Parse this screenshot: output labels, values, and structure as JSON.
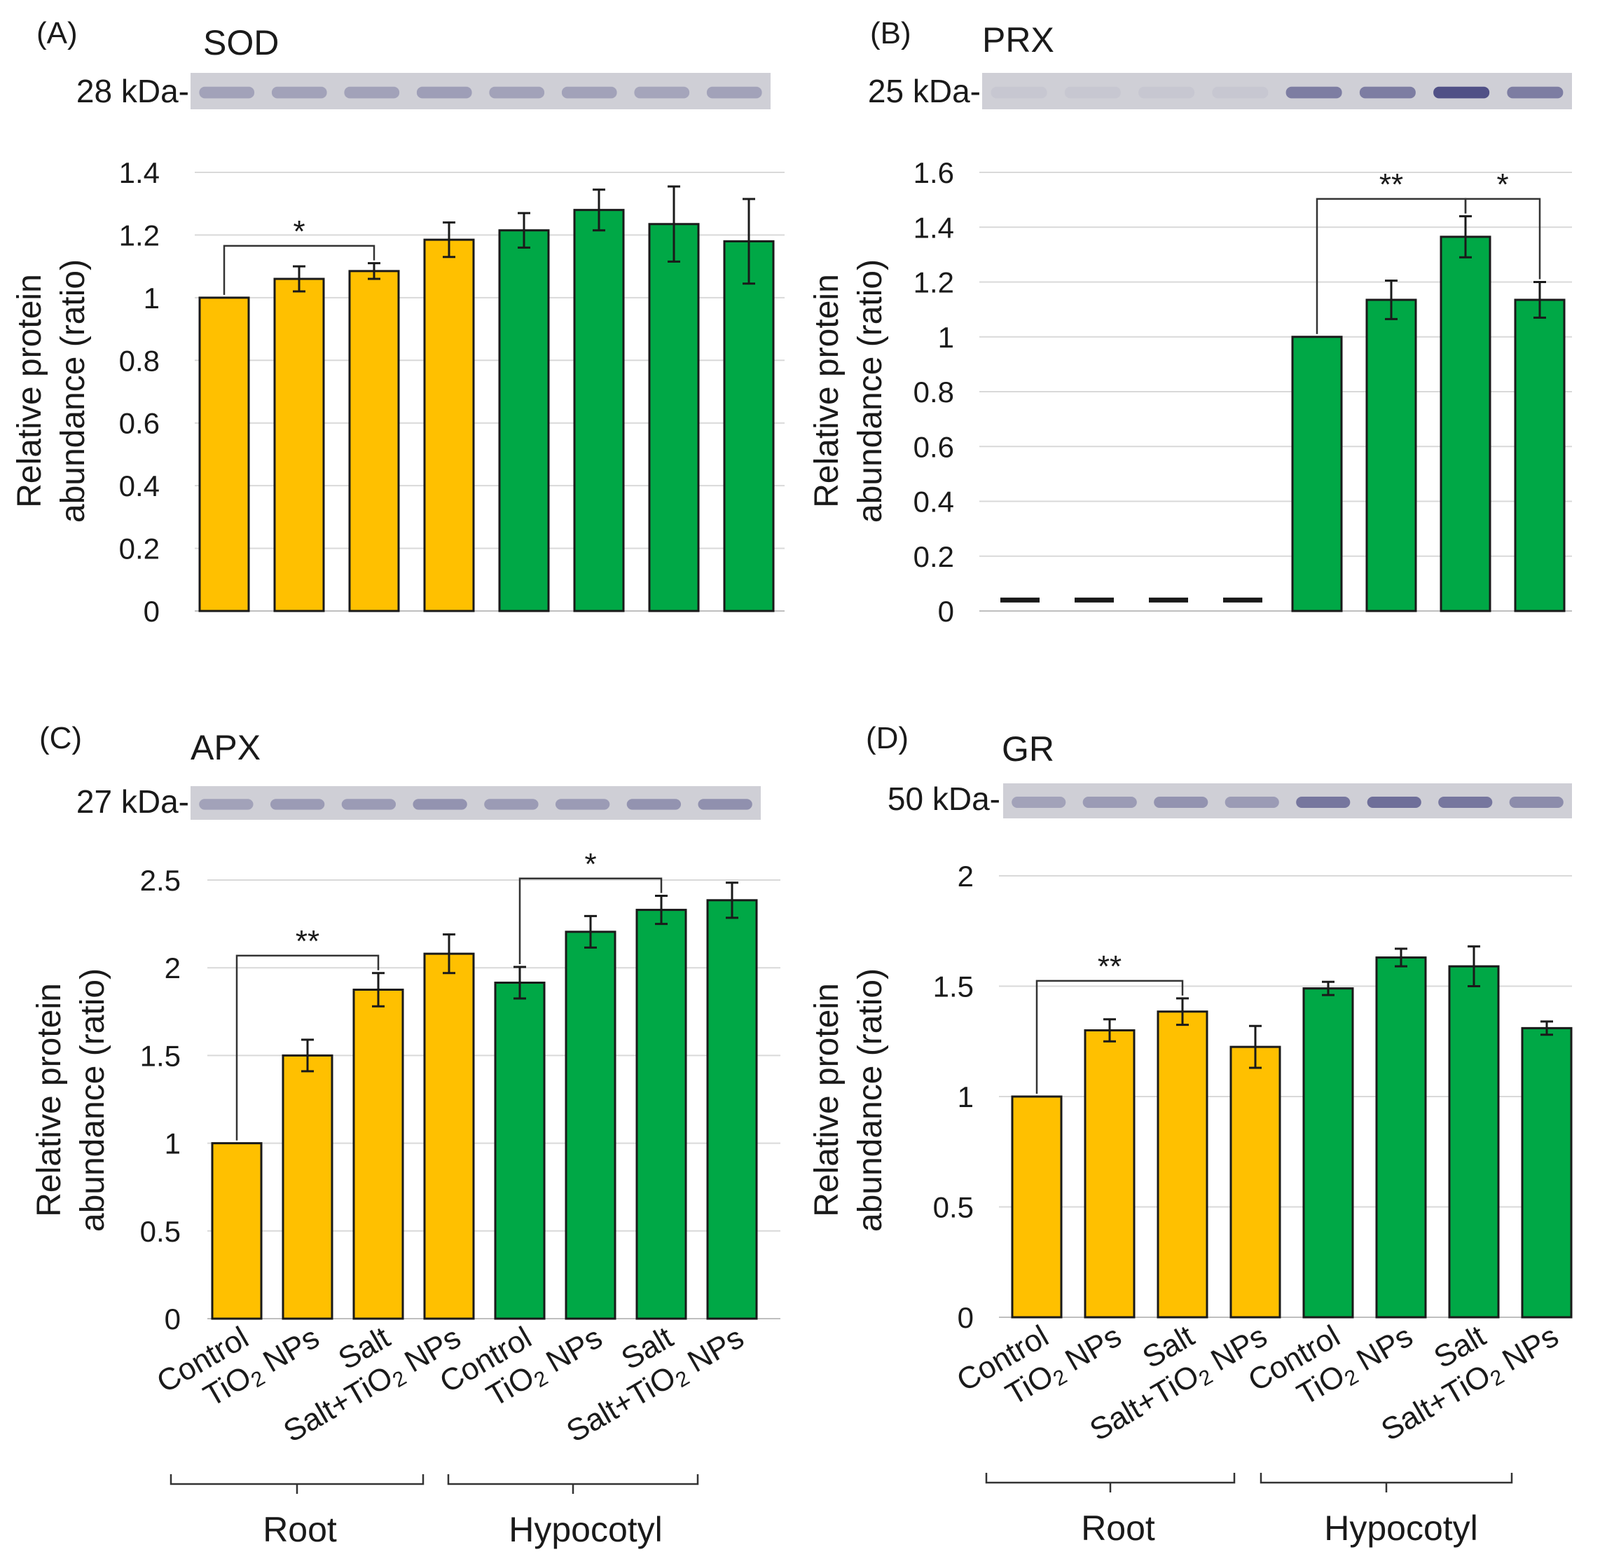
{
  "colors": {
    "root": "#FFC000",
    "hypocotyl": "#00A846",
    "edge": "#1a1a1a",
    "grid": "#d9d9d9"
  },
  "groups": {
    "root": "Root",
    "hypocotyl": "Hypocotyl"
  },
  "categories": [
    "Control",
    "TiO2 NPs",
    "Salt",
    "Salt+TiO2 NPs",
    "Control",
    "TiO2 NPs",
    "Salt",
    "Salt+TiO2 NPs"
  ],
  "chart_data": [
    {
      "panel": "(A)",
      "title": "SOD",
      "type": "bar",
      "band_label": "28 kDa-",
      "ylabel": "Relative protein abundance (ratio)",
      "ylim": [
        0,
        1.4
      ],
      "yticks": [
        0,
        0.2,
        0.4,
        0.6,
        0.8,
        1,
        1.2,
        1.4
      ],
      "values": [
        1.0,
        1.06,
        1.085,
        1.185,
        1.215,
        1.28,
        1.235,
        1.18
      ],
      "errors": [
        0,
        0.04,
        0.025,
        0.055,
        0.055,
        0.065,
        0.12,
        0.135
      ],
      "band_intensity": [
        0.3,
        0.3,
        0.3,
        0.33,
        0.3,
        0.3,
        0.28,
        0.3
      ],
      "significance": [
        {
          "from": 0,
          "to": 2,
          "label": "*"
        }
      ]
    },
    {
      "panel": "(B)",
      "title": "PRX",
      "type": "bar",
      "band_label": "25 kDa-",
      "ylabel": "Relative protein abundance (ratio)",
      "ylim": [
        0,
        1.6
      ],
      "yticks": [
        0,
        0.2,
        0.4,
        0.6,
        0.8,
        1,
        1.2,
        1.4,
        1.6
      ],
      "values": [
        null,
        null,
        null,
        null,
        1.0,
        1.135,
        1.365,
        1.135
      ],
      "errors": [
        0,
        0,
        0,
        0,
        0,
        0.07,
        0.075,
        0.065
      ],
      "band_intensity": [
        0.05,
        0.05,
        0.05,
        0.05,
        0.55,
        0.55,
        0.85,
        0.55
      ],
      "significance": [
        {
          "from": 4,
          "to": 6,
          "label": "**"
        },
        {
          "from": 6,
          "to": 7,
          "label": "*"
        }
      ]
    },
    {
      "panel": "(C)",
      "title": "APX",
      "type": "bar",
      "band_label": "27 kDa-",
      "ylabel": "Relative protein abundance (ratio)",
      "ylim": [
        0,
        2.5
      ],
      "yticks": [
        0,
        0.5,
        1,
        1.5,
        2,
        2.5
      ],
      "values": [
        1.0,
        1.5,
        1.875,
        2.08,
        1.915,
        2.205,
        2.33,
        2.385
      ],
      "errors": [
        0,
        0.09,
        0.095,
        0.11,
        0.09,
        0.09,
        0.08,
        0.1
      ],
      "band_intensity": [
        0.3,
        0.35,
        0.35,
        0.4,
        0.35,
        0.35,
        0.4,
        0.42
      ],
      "significance": [
        {
          "from": 0,
          "to": 2,
          "label": "**"
        },
        {
          "from": 4,
          "to": 6,
          "label": "*"
        }
      ]
    },
    {
      "panel": "(D)",
      "title": "GR",
      "type": "bar",
      "band_label": "50 kDa-",
      "ylabel": "Relative protein abundance (ratio)",
      "ylim": [
        0,
        2
      ],
      "yticks": [
        0,
        0.5,
        1,
        1.5,
        2
      ],
      "values": [
        1.0,
        1.3,
        1.385,
        1.225,
        1.49,
        1.63,
        1.59,
        1.31
      ],
      "errors": [
        0,
        0.05,
        0.06,
        0.095,
        0.03,
        0.04,
        0.09,
        0.03
      ],
      "band_intensity": [
        0.3,
        0.35,
        0.4,
        0.35,
        0.6,
        0.65,
        0.6,
        0.45
      ],
      "significance": [
        {
          "from": 0,
          "to": 2,
          "label": "**"
        }
      ]
    }
  ]
}
